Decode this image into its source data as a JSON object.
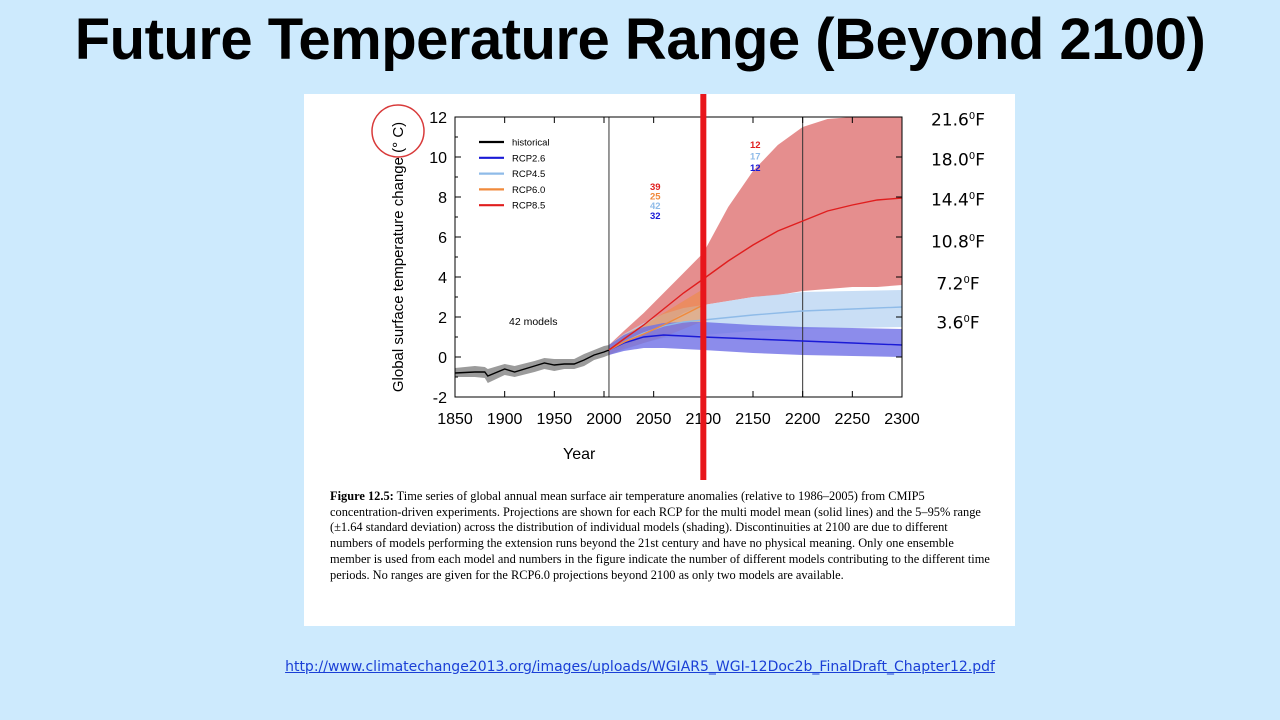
{
  "slide": {
    "title": "Future Temperature Range (Beyond 2100)",
    "source_url": "http://www.climatechange2013.org/images/uploads/WGIAR5_WGI-12Doc2b_FinalDraft_Chapter12.pdf"
  },
  "fahrenheit_labels": [
    {
      "value": "21.6",
      "unit": "F",
      "degree": "0"
    },
    {
      "value": "18.0",
      "unit": "F",
      "degree": "0"
    },
    {
      "value": "14.4",
      "unit": "F",
      "degree": "0"
    },
    {
      "value": "10.8",
      "unit": "F",
      "degree": "0"
    },
    {
      "value": "7.2",
      "unit": "F",
      "degree": "0"
    },
    {
      "value": "3.6",
      "unit": "F",
      "degree": "0"
    }
  ],
  "caption": {
    "label": "Figure 12.5:",
    "text": " Time series of global annual mean surface air temperature anomalies (relative to 1986–2005) from CMIP5 concentration-driven experiments. Projections are shown for each RCP for the multi model mean (solid lines) and the 5–95% range (±1.64 standard deviation) across the distribution of individual models (shading). Discontinuities at 2100 are due to different numbers of models performing the extension runs beyond the 21st century and have no physical meaning. Only one ensemble member is used from each model and numbers in the figure indicate the number of different models contributing to the different time periods. No ranges are given for the RCP6.0 projections beyond 2100 as only two models are available."
  },
  "colors": {
    "historical": "#000000",
    "rcp26": "#1a1ad6",
    "rcp45": "#8fbbe8",
    "rcp60": "#f08a3c",
    "rcp85": "#e01e1e",
    "rcp85_shade": "#e07a7a",
    "rcp45_shade": "#b7d3f2",
    "rcp26_shade": "#6f6fe6",
    "hist_shade": "#8a8a8a",
    "highlight_line": "#e8161b",
    "circle": "#d83a3a"
  },
  "chart_data": {
    "type": "line",
    "xlabel": "Year",
    "ylabel": "Global surface temperature change (° C)",
    "xlim": [
      1850,
      2300
    ],
    "ylim": [
      -2,
      12
    ],
    "xticks": [
      1850,
      1900,
      1950,
      2000,
      2050,
      2100,
      2150,
      2200,
      2250,
      2300
    ],
    "yticks": [
      -2,
      0,
      2,
      4,
      6,
      8,
      10,
      12
    ],
    "vlines": [
      2005,
      2100,
      2200
    ],
    "highlight_year": 2100,
    "annotation": "42 models",
    "legend_position": "top-left",
    "legend": [
      "historical",
      "RCP2.6",
      "RCP4.5",
      "RCP6.0",
      "RCP8.5"
    ],
    "model_counts_2006_2100": [
      {
        "series": "RCP8.5",
        "value": "39"
      },
      {
        "series": "RCP6.0",
        "value": "25"
      },
      {
        "series": "RCP4.5",
        "value": "42"
      },
      {
        "series": "RCP2.6",
        "value": "32"
      }
    ],
    "model_counts_2100_2300": [
      {
        "series": "RCP8.5",
        "value": "12"
      },
      {
        "series": "RCP4.5",
        "value": "17"
      },
      {
        "series": "RCP2.6",
        "value": "12"
      }
    ],
    "series": [
      {
        "name": "historical",
        "x": [
          1850,
          1870,
          1880,
          1883,
          1900,
          1910,
          1930,
          1940,
          1950,
          1960,
          1970,
          1980,
          1990,
          2000,
          2005
        ],
        "y": [
          -0.8,
          -0.75,
          -0.75,
          -0.95,
          -0.6,
          -0.75,
          -0.45,
          -0.3,
          -0.4,
          -0.35,
          -0.35,
          -0.15,
          0.1,
          0.25,
          0.35
        ],
        "lo": [
          -1.0,
          -1.0,
          -1.05,
          -1.3,
          -0.9,
          -1.0,
          -0.75,
          -0.6,
          -0.7,
          -0.6,
          -0.6,
          -0.45,
          -0.15,
          0.0,
          0.1
        ],
        "hi": [
          -0.55,
          -0.45,
          -0.5,
          -0.6,
          -0.35,
          -0.45,
          -0.2,
          -0.05,
          -0.1,
          -0.1,
          -0.1,
          0.15,
          0.35,
          0.55,
          0.6
        ]
      },
      {
        "name": "RCP2.6",
        "x": [
          2005,
          2020,
          2040,
          2060,
          2080,
          2100,
          2150,
          2200,
          2250,
          2300
        ],
        "y": [
          0.35,
          0.7,
          1.0,
          1.1,
          1.05,
          1.0,
          0.9,
          0.8,
          0.7,
          0.6
        ],
        "lo": [
          0.1,
          0.3,
          0.45,
          0.45,
          0.4,
          0.35,
          0.2,
          0.1,
          0.05,
          0.0
        ],
        "hi": [
          0.6,
          1.1,
          1.5,
          1.7,
          1.75,
          1.75,
          1.6,
          1.5,
          1.45,
          1.4
        ]
      },
      {
        "name": "RCP4.5",
        "x": [
          2005,
          2020,
          2040,
          2060,
          2080,
          2100,
          2150,
          2200,
          2250,
          2300
        ],
        "y": [
          0.35,
          0.75,
          1.2,
          1.55,
          1.75,
          1.85,
          2.1,
          2.3,
          2.4,
          2.5
        ],
        "lo": [
          0.1,
          0.35,
          0.7,
          0.95,
          1.05,
          1.1,
          1.3,
          1.4,
          1.45,
          1.5
        ],
        "hi": [
          0.6,
          1.15,
          1.7,
          2.15,
          2.45,
          2.6,
          3.0,
          3.25,
          3.3,
          3.35
        ]
      },
      {
        "name": "RCP6.0",
        "x": [
          2005,
          2020,
          2040,
          2060,
          2080,
          2100
        ],
        "y": [
          0.35,
          0.75,
          1.15,
          1.6,
          2.1,
          2.6
        ],
        "lo": [
          0.1,
          0.4,
          0.7,
          1.0,
          1.4,
          1.8
        ],
        "hi": [
          0.6,
          1.1,
          1.6,
          2.2,
          2.8,
          3.4
        ]
      },
      {
        "name": "RCP8.5",
        "x": [
          2005,
          2020,
          2040,
          2060,
          2080,
          2100,
          2125,
          2150,
          2175,
          2200,
          2225,
          2250,
          2275,
          2300
        ],
        "y": [
          0.35,
          0.9,
          1.6,
          2.4,
          3.2,
          3.9,
          4.8,
          5.6,
          6.3,
          6.8,
          7.3,
          7.6,
          7.85,
          7.95
        ],
        "lo": [
          0.1,
          0.5,
          1.0,
          1.6,
          2.2,
          2.6,
          2.8,
          3.0,
          3.1,
          3.3,
          3.4,
          3.5,
          3.5,
          3.6
        ],
        "hi": [
          0.6,
          1.3,
          2.2,
          3.2,
          4.2,
          5.2,
          7.5,
          9.3,
          10.6,
          11.5,
          11.9,
          12.0,
          12.0,
          12.0
        ]
      }
    ]
  }
}
